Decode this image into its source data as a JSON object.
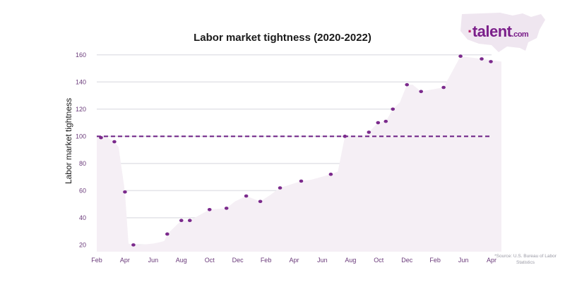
{
  "brand": {
    "name": "talent",
    "suffix": ".com"
  },
  "source": "*Source: U.S. Bureau of Labor Statistics",
  "chart_data": {
    "type": "scatter",
    "title": "Labor market tightness (2020-2022)",
    "xlabel": "",
    "ylabel": "Labor market tightness",
    "ylim": [
      15,
      163
    ],
    "yticks": [
      20,
      40,
      60,
      80,
      100,
      120,
      140,
      160
    ],
    "xticks": [
      "Feb",
      "Apr",
      "Jun",
      "Aug",
      "Oct",
      "Dec",
      "Feb",
      "Apr",
      "Jun",
      "Aug",
      "Oct",
      "Dec",
      "Feb",
      "Jun",
      "Apr"
    ],
    "xtick_index": [
      0,
      2,
      4,
      6,
      8,
      10,
      12,
      14,
      16,
      18,
      20,
      22,
      24,
      26,
      28
    ],
    "xlim": [
      0,
      28
    ],
    "reference_line": {
      "y": 100,
      "style": "dashed",
      "color": "#6b1d83"
    },
    "series": [
      {
        "x": [
          0.3,
          1.25,
          2.0,
          2.6,
          5.0,
          6.0,
          6.6,
          8.0,
          9.2,
          10.6,
          11.6,
          13.0,
          14.5,
          16.6,
          17.6,
          19.3,
          19.95,
          20.5,
          21.0,
          22.0,
          23.0,
          24.6,
          25.8,
          27.3,
          28.7
        ],
        "values": [
          99,
          96,
          59,
          20,
          28,
          38,
          38,
          46,
          47,
          56,
          52,
          62,
          67,
          72,
          100,
          103,
          110,
          111,
          120,
          138,
          133,
          136,
          159,
          157,
          155
        ]
      }
    ],
    "area_y": [
      100,
      100,
      96,
      92,
      59,
      21,
      20,
      20,
      21,
      22,
      23,
      28,
      33,
      38,
      38,
      46,
      47,
      52,
      56,
      52,
      56,
      62,
      67,
      68,
      72,
      74,
      100,
      100,
      103,
      110,
      111,
      120,
      125,
      138,
      138,
      133,
      136,
      159,
      157,
      155
    ],
    "area_x": [
      0.0,
      0.6,
      1.25,
      1.55,
      2.0,
      2.25,
      2.6,
      3.0,
      4.0,
      4.5,
      4.8,
      5.0,
      5.5,
      6.0,
      6.6,
      8.0,
      9.2,
      9.8,
      10.6,
      11.6,
      12.2,
      13.0,
      14.5,
      15.2,
      16.6,
      17.1,
      17.6,
      18.8,
      19.3,
      19.95,
      20.5,
      21.0,
      21.5,
      22.0,
      22.4,
      23.0,
      24.6,
      25.8,
      27.3,
      28.7
    ],
    "colors": {
      "marker": "#7b2a8c",
      "reference": "#6b1d83",
      "area": "#f5eff5",
      "grid": "#e3e3e8",
      "tick": "#6a3a7a"
    },
    "grid": true,
    "legend": "none"
  }
}
